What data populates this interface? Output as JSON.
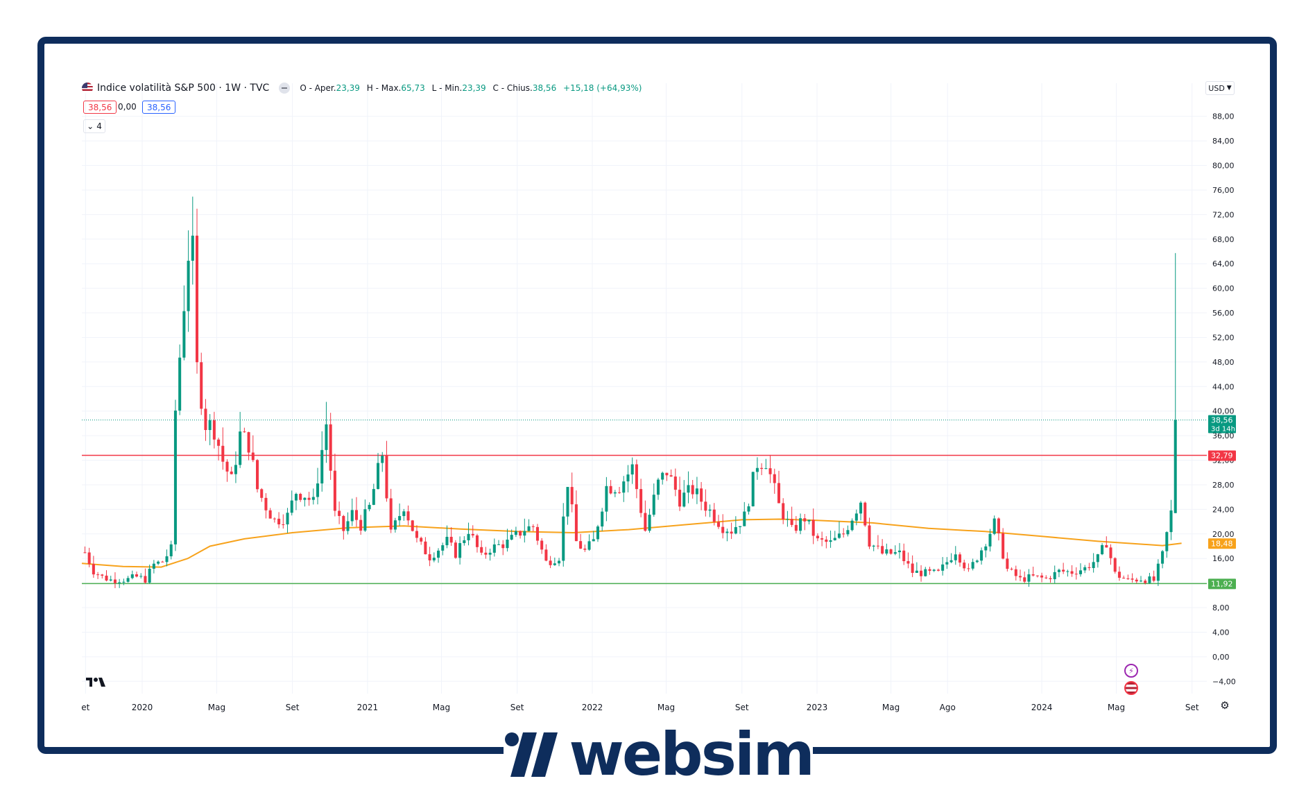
{
  "legend": {
    "symbol": "Indice volatilità S&P 500 · 1W · TVC",
    "o_label": "O - Aper.",
    "o_value": "23,39",
    "h_label": "H - Max.",
    "h_value": "65,73",
    "l_label": "L - Min.",
    "l_value": "23,39",
    "c_label": "C - Chius.",
    "c_value": "38,56",
    "change": "+15,18 (+64,93%)",
    "pill_left": "38,56",
    "pill_mid": "0,00",
    "pill_right": "38,56",
    "indicators_count": "4"
  },
  "currency": "USD",
  "brand": {
    "name": "websim",
    "color": "#0e2d5c"
  },
  "colors": {
    "up": "#089981",
    "down": "#f23645",
    "ma": "#f7a21b",
    "support": "#4caf50",
    "resistance": "#f23645"
  },
  "chart_data": {
    "type": "candlestick",
    "title": "Indice volatilità S&P 500 · 1W · TVC",
    "xlabel": "",
    "ylabel": "",
    "x_range": [
      "2019-09-25",
      "2024-09-25"
    ],
    "ylim": [
      -6,
      90
    ],
    "y_ticks": [
      "88,00",
      "84,00",
      "80,00",
      "76,00",
      "72,00",
      "68,00",
      "64,00",
      "60,00",
      "56,00",
      "52,00",
      "48,00",
      "44,00",
      "40,00",
      "36,00",
      "32,00",
      "28,00",
      "24,00",
      "20,00",
      "16,00",
      "12,00",
      "8,00",
      "4,00",
      "0,00",
      "−4,00"
    ],
    "y_tick_values": [
      88,
      84,
      80,
      76,
      72,
      68,
      64,
      60,
      56,
      52,
      48,
      44,
      40,
      36,
      32,
      28,
      24,
      20,
      16,
      12,
      8,
      4,
      0,
      -4
    ],
    "x_ticks": [
      {
        "label": "et",
        "date": "2019-10-01"
      },
      {
        "label": "2020",
        "date": "2020-01-01"
      },
      {
        "label": "Mag",
        "date": "2020-05-01"
      },
      {
        "label": "Set",
        "date": "2020-09-01"
      },
      {
        "label": "2021",
        "date": "2021-01-01"
      },
      {
        "label": "Mag",
        "date": "2021-05-01"
      },
      {
        "label": "Set",
        "date": "2021-09-01"
      },
      {
        "label": "2022",
        "date": "2022-01-01"
      },
      {
        "label": "Mag",
        "date": "2022-05-01"
      },
      {
        "label": "Set",
        "date": "2022-09-01"
      },
      {
        "label": "2023",
        "date": "2023-01-01"
      },
      {
        "label": "Mag",
        "date": "2023-05-01"
      },
      {
        "label": "Ago",
        "date": "2023-08-01"
      },
      {
        "label": "2024",
        "date": "2024-01-01"
      },
      {
        "label": "Mag",
        "date": "2024-05-01"
      },
      {
        "label": "Set",
        "date": "2024-09-01"
      }
    ],
    "horizontal_lines": [
      {
        "value": 32.79,
        "label": "32,79",
        "color": "#f23645"
      },
      {
        "value": 11.92,
        "label": "11,92",
        "color": "#4caf50"
      }
    ],
    "last_price": {
      "value": 38.56,
      "label": "38,56",
      "countdown": "3d 14h"
    },
    "ma_label": {
      "value": 18.48,
      "label": "18,48"
    },
    "moving_average": [
      [
        "2019-09-25",
        15.2
      ],
      [
        "2019-12-01",
        14.7
      ],
      [
        "2020-02-01",
        14.6
      ],
      [
        "2020-03-15",
        16.0
      ],
      [
        "2020-04-20",
        18.0
      ],
      [
        "2020-06-15",
        19.2
      ],
      [
        "2020-09-01",
        20.2
      ],
      [
        "2020-12-01",
        21.0
      ],
      [
        "2021-03-01",
        21.3
      ],
      [
        "2021-06-01",
        20.8
      ],
      [
        "2021-09-01",
        20.4
      ],
      [
        "2021-12-01",
        20.2
      ],
      [
        "2022-03-01",
        20.7
      ],
      [
        "2022-06-01",
        21.5
      ],
      [
        "2022-09-01",
        22.3
      ],
      [
        "2022-11-01",
        22.4
      ],
      [
        "2023-01-01",
        22.2
      ],
      [
        "2023-04-01",
        21.8
      ],
      [
        "2023-07-01",
        20.9
      ],
      [
        "2023-10-01",
        20.4
      ],
      [
        "2024-01-01",
        19.6
      ],
      [
        "2024-04-01",
        18.8
      ],
      [
        "2024-07-15",
        18.1
      ],
      [
        "2024-08-15",
        18.48
      ]
    ],
    "weekly_closes": [
      [
        "2019-09-30",
        17.0
      ],
      [
        "2019-10-14",
        14.0
      ],
      [
        "2019-10-28",
        13.0
      ],
      [
        "2019-11-11",
        12.5
      ],
      [
        "2019-11-25",
        12.6
      ],
      [
        "2019-12-09",
        12.6
      ],
      [
        "2019-12-23",
        13.0
      ],
      [
        "2020-01-06",
        12.6
      ],
      [
        "2020-01-20",
        15.0
      ],
      [
        "2020-02-03",
        15.5
      ],
      [
        "2020-02-17",
        17.5
      ],
      [
        "2020-02-24",
        40.1
      ],
      [
        "2020-03-09",
        57.8
      ],
      [
        "2020-03-16",
        66.0
      ],
      [
        "2020-03-23",
        65.5
      ],
      [
        "2020-03-30",
        46.8
      ],
      [
        "2020-04-13",
        38.0
      ],
      [
        "2020-04-27",
        37.2
      ],
      [
        "2020-05-11",
        31.9
      ],
      [
        "2020-05-25",
        28.6
      ],
      [
        "2020-06-08",
        36.1
      ],
      [
        "2020-06-22",
        34.7
      ],
      [
        "2020-07-06",
        27.3
      ],
      [
        "2020-07-20",
        24.5
      ],
      [
        "2020-08-03",
        22.2
      ],
      [
        "2020-08-24",
        22.9
      ],
      [
        "2020-09-07",
        26.9
      ],
      [
        "2020-09-21",
        26.4
      ],
      [
        "2020-10-05",
        25.0
      ],
      [
        "2020-10-26",
        38.0
      ],
      [
        "2020-11-09",
        23.1
      ],
      [
        "2020-11-23",
        20.6
      ],
      [
        "2020-12-07",
        23.3
      ],
      [
        "2020-12-21",
        21.5
      ],
      [
        "2021-01-04",
        24.3
      ],
      [
        "2021-01-25",
        33.1
      ],
      [
        "2021-02-08",
        19.9
      ],
      [
        "2021-03-01",
        24.7
      ],
      [
        "2021-03-22",
        18.9
      ],
      [
        "2021-04-12",
        16.3
      ],
      [
        "2021-05-10",
        18.8
      ],
      [
        "2021-05-24",
        16.8
      ],
      [
        "2021-06-14",
        20.7
      ],
      [
        "2021-07-05",
        16.2
      ],
      [
        "2021-07-19",
        17.6
      ],
      [
        "2021-08-16",
        18.6
      ],
      [
        "2021-09-13",
        20.8
      ],
      [
        "2021-09-27",
        21.2
      ],
      [
        "2021-10-18",
        15.4
      ],
      [
        "2021-11-08",
        16.3
      ],
      [
        "2021-11-22",
        28.6
      ],
      [
        "2021-12-06",
        18.7
      ],
      [
        "2021-12-20",
        17.2
      ],
      [
        "2022-01-03",
        18.8
      ],
      [
        "2022-01-24",
        27.7
      ],
      [
        "2022-02-14",
        27.8
      ],
      [
        "2022-03-07",
        30.8
      ],
      [
        "2022-03-28",
        20.6
      ],
      [
        "2022-04-18",
        28.2
      ],
      [
        "2022-05-02",
        30.2
      ],
      [
        "2022-05-23",
        25.7
      ],
      [
        "2022-06-13",
        27.2
      ],
      [
        "2022-07-04",
        24.6
      ],
      [
        "2022-08-01",
        21.2
      ],
      [
        "2022-08-15",
        20.6
      ],
      [
        "2022-09-05",
        22.8
      ],
      [
        "2022-09-26",
        31.6
      ],
      [
        "2022-10-10",
        32.0
      ],
      [
        "2022-10-31",
        24.6
      ],
      [
        "2022-11-21",
        20.5
      ],
      [
        "2022-12-12",
        22.6
      ],
      [
        "2023-01-02",
        18.8
      ],
      [
        "2023-01-23",
        18.5
      ],
      [
        "2023-02-13",
        20.0
      ],
      [
        "2023-03-13",
        25.5
      ],
      [
        "2023-03-27",
        18.7
      ],
      [
        "2023-04-17",
        16.8
      ],
      [
        "2023-05-15",
        16.8
      ],
      [
        "2023-06-05",
        13.8
      ],
      [
        "2023-06-26",
        13.6
      ],
      [
        "2023-07-17",
        13.6
      ],
      [
        "2023-08-14",
        17.3
      ],
      [
        "2023-09-04",
        13.8
      ],
      [
        "2023-09-25",
        17.5
      ],
      [
        "2023-10-16",
        21.7
      ],
      [
        "2023-11-06",
        14.2
      ],
      [
        "2023-11-27",
        12.6
      ],
      [
        "2023-12-18",
        13.0
      ],
      [
        "2024-01-08",
        12.7
      ],
      [
        "2024-01-29",
        13.9
      ],
      [
        "2024-02-19",
        13.8
      ],
      [
        "2024-03-11",
        14.4
      ],
      [
        "2024-04-01",
        16.0
      ],
      [
        "2024-04-15",
        18.7
      ],
      [
        "2024-04-29",
        13.5
      ],
      [
        "2024-05-20",
        12.4
      ],
      [
        "2024-06-10",
        12.7
      ],
      [
        "2024-07-01",
        12.4
      ],
      [
        "2024-07-15",
        16.5
      ],
      [
        "2024-07-29",
        23.4
      ],
      [
        "2024-08-05",
        38.56
      ]
    ],
    "last_candle": {
      "date": "2024-08-05",
      "open": 23.39,
      "high": 65.73,
      "low": 23.39,
      "close": 38.56
    }
  }
}
